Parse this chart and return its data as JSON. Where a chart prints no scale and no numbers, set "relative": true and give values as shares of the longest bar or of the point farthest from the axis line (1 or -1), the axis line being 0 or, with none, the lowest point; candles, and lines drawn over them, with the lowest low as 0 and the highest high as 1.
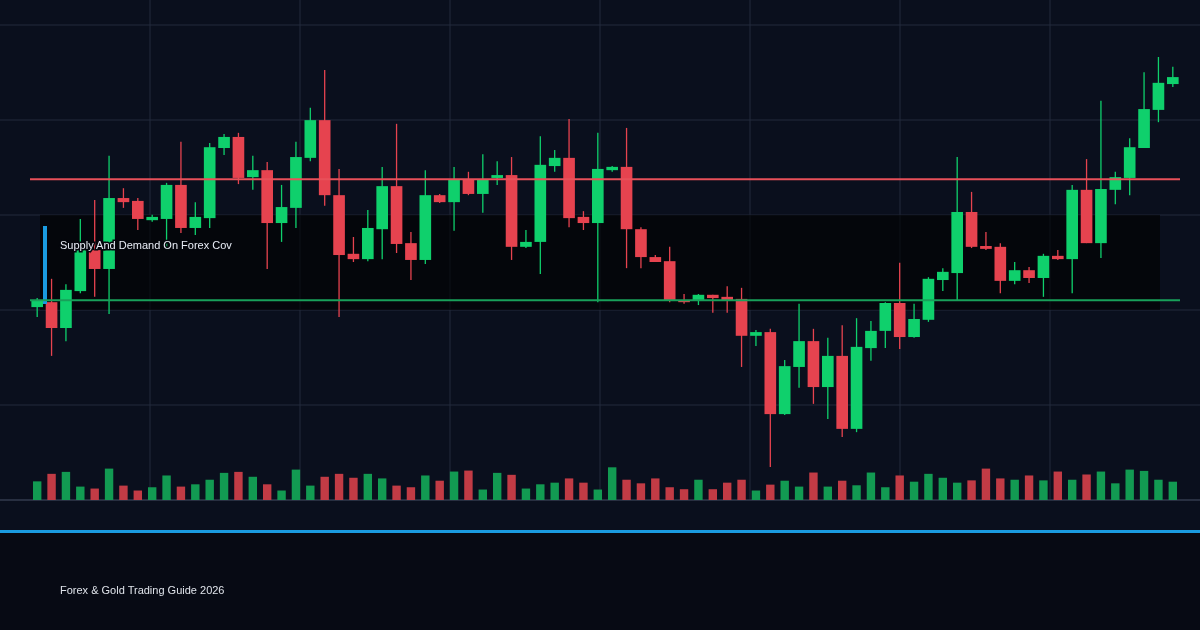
{
  "chart_data": [
    {
      "type": "candlestick",
      "relative": true,
      "grid": true,
      "categories": [
        null,
        null,
        null,
        null,
        null,
        null,
        null,
        null,
        null,
        null,
        null,
        null,
        null,
        null,
        null,
        null,
        null,
        null,
        null,
        null,
        null,
        null,
        null,
        null,
        null,
        null,
        null,
        null,
        null,
        null,
        null,
        null,
        null,
        null,
        null,
        null,
        null,
        null,
        null,
        null,
        null,
        null,
        null,
        null,
        null,
        null,
        null,
        null,
        null,
        null,
        null,
        null,
        null,
        null,
        null,
        null,
        null,
        null,
        null,
        null,
        null,
        null,
        null,
        null,
        null,
        null,
        null,
        null,
        null,
        null,
        null,
        null,
        null,
        null,
        null,
        null,
        null,
        null,
        null,
        null
      ],
      "ohlc": [
        [
          0.39,
          0.412,
          0.366,
          0.407
        ],
        [
          0.402,
          0.459,
          0.271,
          0.339
        ],
        [
          0.339,
          0.446,
          0.307,
          0.432
        ],
        [
          0.429,
          0.605,
          0.424,
          0.529
        ],
        [
          0.529,
          0.651,
          0.415,
          0.483
        ],
        [
          0.483,
          0.759,
          0.373,
          0.656
        ],
        [
          0.656,
          0.68,
          0.632,
          0.646
        ],
        [
          0.649,
          0.656,
          0.578,
          0.605
        ],
        [
          0.602,
          0.615,
          0.598,
          0.61
        ],
        [
          0.605,
          0.693,
          0.537,
          0.688
        ],
        [
          0.688,
          0.793,
          0.571,
          0.583
        ],
        [
          0.583,
          0.646,
          0.566,
          0.61
        ],
        [
          0.607,
          0.79,
          0.583,
          0.78
        ],
        [
          0.778,
          0.812,
          0.761,
          0.805
        ],
        [
          0.805,
          0.815,
          0.69,
          0.705
        ],
        [
          0.707,
          0.759,
          0.676,
          0.724
        ],
        [
          0.724,
          0.744,
          0.483,
          0.595
        ],
        [
          0.595,
          0.688,
          0.549,
          0.634
        ],
        [
          0.632,
          0.793,
          0.583,
          0.756
        ],
        [
          0.754,
          0.876,
          0.746,
          0.846
        ],
        [
          0.846,
          0.968,
          0.637,
          0.663
        ],
        [
          0.663,
          0.727,
          0.366,
          0.517
        ],
        [
          0.52,
          0.561,
          0.5,
          0.507
        ],
        [
          0.507,
          0.627,
          0.502,
          0.583
        ],
        [
          0.58,
          0.732,
          0.507,
          0.685
        ],
        [
          0.685,
          0.837,
          0.522,
          0.544
        ],
        [
          0.546,
          0.573,
          0.456,
          0.505
        ],
        [
          0.505,
          0.724,
          0.495,
          0.663
        ],
        [
          0.663,
          0.666,
          0.644,
          0.646
        ],
        [
          0.646,
          0.732,
          0.576,
          0.7
        ],
        [
          0.7,
          0.72,
          0.663,
          0.666
        ],
        [
          0.666,
          0.763,
          0.62,
          0.7
        ],
        [
          0.705,
          0.746,
          0.688,
          0.712
        ],
        [
          0.712,
          0.756,
          0.505,
          0.537
        ],
        [
          0.537,
          0.578,
          0.534,
          0.549
        ],
        [
          0.549,
          0.807,
          0.471,
          0.737
        ],
        [
          0.734,
          0.773,
          0.72,
          0.754
        ],
        [
          0.754,
          0.849,
          0.585,
          0.607
        ],
        [
          0.61,
          0.624,
          0.578,
          0.595
        ],
        [
          0.595,
          0.815,
          0.402,
          0.727
        ],
        [
          0.724,
          0.734,
          0.72,
          0.732
        ],
        [
          0.732,
          0.827,
          0.485,
          0.58
        ],
        [
          0.58,
          0.585,
          0.485,
          0.512
        ],
        [
          0.512,
          0.517,
          0.5,
          0.5
        ],
        [
          0.502,
          0.537,
          0.402,
          0.405
        ],
        [
          0.407,
          0.422,
          0.398,
          0.402
        ],
        [
          0.405,
          0.422,
          0.395,
          0.42
        ],
        [
          0.42,
          0.42,
          0.376,
          0.412
        ],
        [
          0.415,
          0.441,
          0.376,
          0.407
        ],
        [
          0.41,
          0.437,
          0.244,
          0.32
        ],
        [
          0.32,
          0.334,
          0.295,
          0.329
        ],
        [
          0.329,
          0.337,
          0,
          0.129
        ],
        [
          0.129,
          0.261,
          0.127,
          0.246
        ],
        [
          0.244,
          0.398,
          0.193,
          0.307
        ],
        [
          0.307,
          0.337,
          0.154,
          0.195
        ],
        [
          0.195,
          0.315,
          0.117,
          0.271
        ],
        [
          0.271,
          0.346,
          0.073,
          0.093
        ],
        [
          0.093,
          0.363,
          0.085,
          0.293
        ],
        [
          0.29,
          0.356,
          0.259,
          0.332
        ],
        [
          0.332,
          0.402,
          0.29,
          0.4
        ],
        [
          0.4,
          0.498,
          0.288,
          0.317
        ],
        [
          0.317,
          0.398,
          0.315,
          0.361
        ],
        [
          0.359,
          0.463,
          0.354,
          0.459
        ],
        [
          0.456,
          0.485,
          0.429,
          0.476
        ],
        [
          0.473,
          0.756,
          0.407,
          0.622
        ],
        [
          0.622,
          0.671,
          0.534,
          0.537
        ],
        [
          0.539,
          0.573,
          0.529,
          0.532
        ],
        [
          0.537,
          0.546,
          0.424,
          0.454
        ],
        [
          0.454,
          0.5,
          0.446,
          0.48
        ],
        [
          0.48,
          0.488,
          0.449,
          0.461
        ],
        [
          0.461,
          0.52,
          0.415,
          0.515
        ],
        [
          0.515,
          0.529,
          0.505,
          0.507
        ],
        [
          0.507,
          0.688,
          0.424,
          0.676
        ],
        [
          0.676,
          0.751,
          0.546,
          0.546
        ],
        [
          0.546,
          0.893,
          0.51,
          0.678
        ],
        [
          0.676,
          0.72,
          0.641,
          0.707
        ],
        [
          0.705,
          0.802,
          0.663,
          0.78
        ],
        [
          0.778,
          0.963,
          0.778,
          0.873
        ],
        [
          0.871,
          1,
          0.841,
          0.937
        ],
        [
          0.934,
          0.976,
          0.927,
          0.951
        ]
      ],
      "colors": [
        "#0fd06c",
        "#e6434f",
        "#0fd06c",
        "#0fd06c",
        "#e6434f",
        "#0fd06c",
        "#e6434f",
        "#e6434f",
        "#0fd06c",
        "#0fd06c",
        "#e6434f",
        "#0fd06c",
        "#0fd06c",
        "#0fd06c",
        "#e6434f",
        "#0fd06c",
        "#e6434f",
        "#0fd06c",
        "#0fd06c",
        "#0fd06c",
        "#e6434f",
        "#e6434f",
        "#e6434f",
        "#0fd06c",
        "#0fd06c",
        "#e6434f",
        "#e6434f",
        "#0fd06c",
        "#e6434f",
        "#0fd06c",
        "#e6434f",
        "#0fd06c",
        "#0fd06c",
        "#e6434f",
        "#0fd06c",
        "#0fd06c",
        "#0fd06c",
        "#e6434f",
        "#e6434f",
        "#0fd06c",
        "#0fd06c",
        "#e6434f",
        "#e6434f",
        "#e6434f",
        "#e6434f",
        "#e6434f",
        "#0fd06c",
        "#e6434f",
        "#e6434f",
        "#e6434f",
        "#0fd06c",
        "#e6434f",
        "#0fd06c",
        "#0fd06c",
        "#e6434f",
        "#0fd06c",
        "#e6434f",
        "#0fd06c",
        "#0fd06c",
        "#0fd06c",
        "#e6434f",
        "#0fd06c",
        "#0fd06c",
        "#0fd06c",
        "#0fd06c",
        "#e6434f",
        "#e6434f",
        "#e6434f",
        "#0fd06c",
        "#e6434f",
        "#0fd06c",
        "#e6434f",
        "#0fd06c",
        "#e6434f",
        "#0fd06c",
        "#0fd06c",
        "#0fd06c",
        "#0fd06c",
        "#0fd06c",
        "#0fd06c"
      ],
      "ref_lines": [
        {
          "axis": "y",
          "value": 0.702,
          "color": "#e8505a"
        },
        {
          "axis": "y",
          "value": 0.407,
          "color": "#18a05a"
        }
      ],
      "bands": [
        {
          "axis": "y",
          "from": 0.383,
          "to": 0.615,
          "label": "Supply And Demand On Forex Cov",
          "color": "#000000"
        }
      ],
      "annotations": [
        "Forex & Gold Trading Guide 2026"
      ]
    },
    {
      "type": "bar",
      "relative": true,
      "categories": [
        null,
        null,
        null,
        null,
        null,
        null,
        null,
        null,
        null,
        null,
        null,
        null,
        null,
        null,
        null,
        null,
        null,
        null,
        null,
        null,
        null,
        null,
        null,
        null,
        null,
        null,
        null,
        null,
        null,
        null,
        null,
        null,
        null,
        null,
        null,
        null,
        null,
        null,
        null,
        null,
        null,
        null,
        null,
        null,
        null,
        null,
        null,
        null,
        null,
        null,
        null,
        null,
        null,
        null,
        null,
        null,
        null,
        null,
        null,
        null,
        null,
        null,
        null,
        null,
        null,
        null,
        null,
        null,
        null,
        null,
        null,
        null,
        null,
        null,
        null,
        null,
        null,
        null,
        null,
        null
      ],
      "values": [
        0.57,
        0.8,
        0.86,
        0.41,
        0.35,
        0.96,
        0.44,
        0.29,
        0.39,
        0.75,
        0.41,
        0.48,
        0.62,
        0.83,
        0.86,
        0.71,
        0.48,
        0.29,
        0.93,
        0.44,
        0.71,
        0.8,
        0.68,
        0.8,
        0.66,
        0.44,
        0.39,
        0.75,
        0.59,
        0.87,
        0.9,
        0.32,
        0.83,
        0.77,
        0.35,
        0.48,
        0.53,
        0.66,
        0.53,
        0.32,
        1.0,
        0.62,
        0.51,
        0.66,
        0.39,
        0.33,
        0.62,
        0.33,
        0.53,
        0.62,
        0.29,
        0.47,
        0.59,
        0.41,
        0.84,
        0.41,
        0.59,
        0.45,
        0.84,
        0.39,
        0.75,
        0.56,
        0.8,
        0.68,
        0.53,
        0.6,
        0.96,
        0.66,
        0.62,
        0.75,
        0.6,
        0.87,
        0.62,
        0.78,
        0.87,
        0.51,
        0.93,
        0.89,
        0.62,
        0.56
      ],
      "colors": [
        "#129a52",
        "#c23b45",
        "#129a52",
        "#129a52",
        "#c23b45",
        "#129a52",
        "#c23b45",
        "#c23b45",
        "#129a52",
        "#129a52",
        "#c23b45",
        "#129a52",
        "#129a52",
        "#129a52",
        "#c23b45",
        "#129a52",
        "#c23b45",
        "#129a52",
        "#129a52",
        "#129a52",
        "#c23b45",
        "#c23b45",
        "#c23b45",
        "#129a52",
        "#129a52",
        "#c23b45",
        "#c23b45",
        "#129a52",
        "#c23b45",
        "#129a52",
        "#c23b45",
        "#129a52",
        "#129a52",
        "#c23b45",
        "#129a52",
        "#129a52",
        "#129a52",
        "#c23b45",
        "#c23b45",
        "#129a52",
        "#129a52",
        "#c23b45",
        "#c23b45",
        "#c23b45",
        "#c23b45",
        "#c23b45",
        "#129a52",
        "#c23b45",
        "#c23b45",
        "#c23b45",
        "#129a52",
        "#c23b45",
        "#129a52",
        "#129a52",
        "#c23b45",
        "#129a52",
        "#c23b45",
        "#129a52",
        "#129a52",
        "#129a52",
        "#c23b45",
        "#129a52",
        "#129a52",
        "#129a52",
        "#129a52",
        "#c23b45",
        "#c23b45",
        "#c23b45",
        "#129a52",
        "#c23b45",
        "#129a52",
        "#c23b45",
        "#129a52",
        "#c23b45",
        "#129a52",
        "#129a52",
        "#129a52",
        "#129a52",
        "#129a52",
        "#129a52"
      ]
    }
  ]
}
